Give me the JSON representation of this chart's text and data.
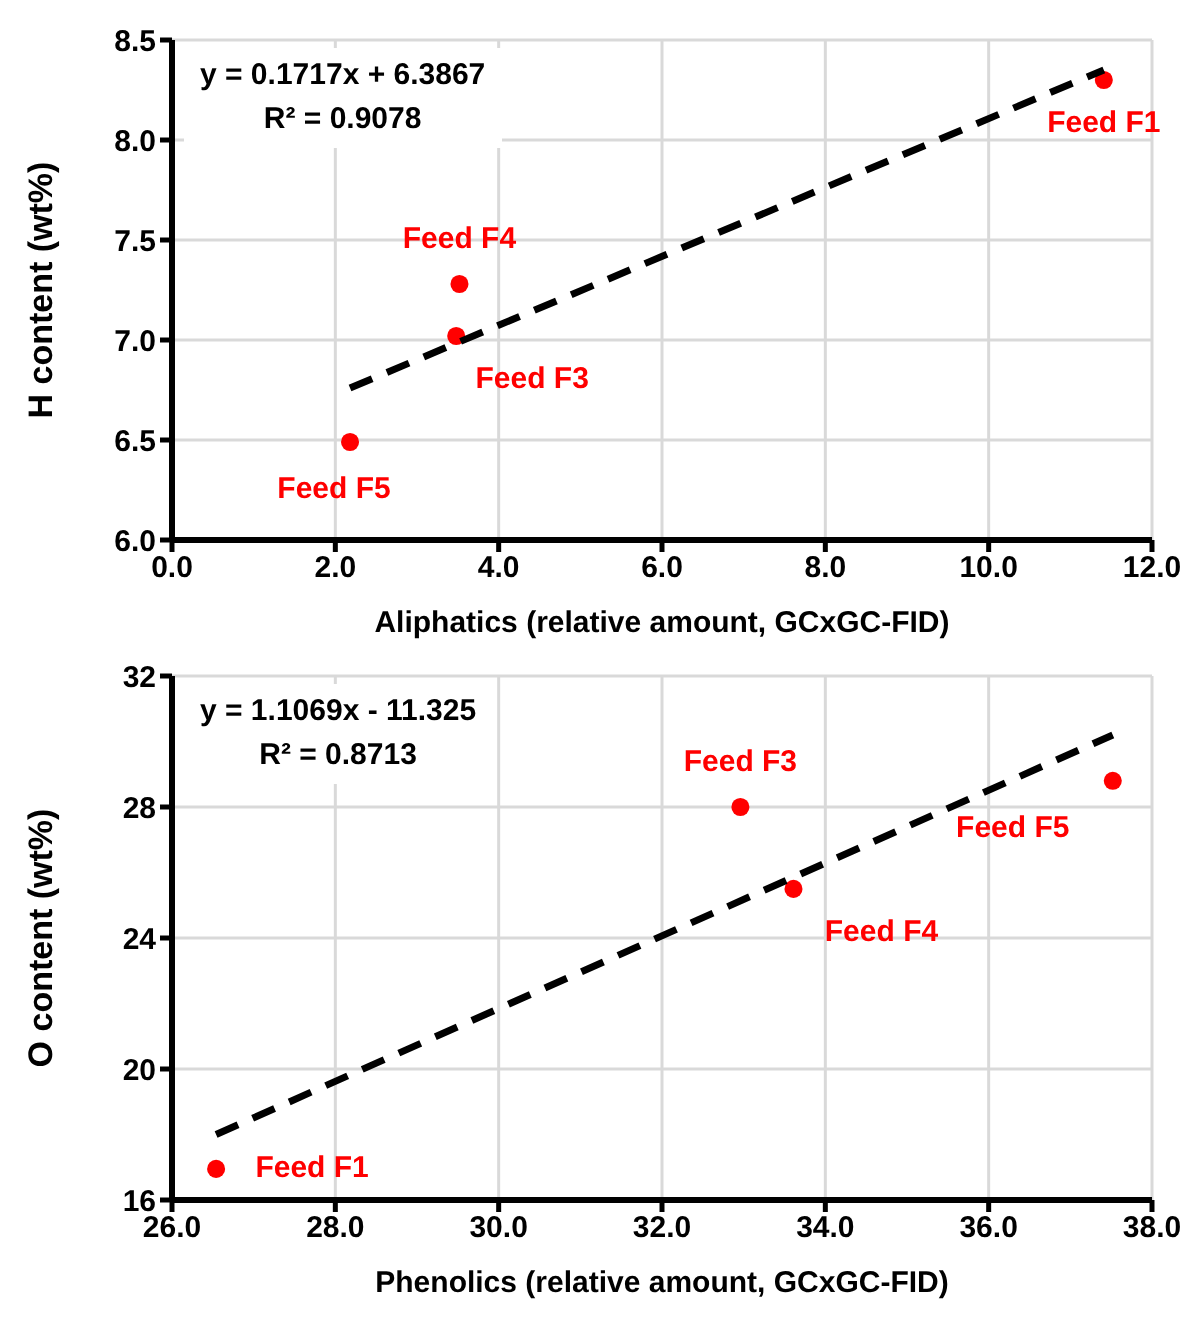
{
  "chart_data": [
    {
      "type": "scatter",
      "xlabel": "Aliphatics (relative amount, GCxGC-FID)",
      "ylabel": "H content (wt%)",
      "xlim": [
        0,
        12
      ],
      "xticks": [
        {
          "value": 0,
          "label": "0.0"
        },
        {
          "value": 2,
          "label": "2.0"
        },
        {
          "value": 4,
          "label": "4.0"
        },
        {
          "value": 6,
          "label": "6.0"
        },
        {
          "value": 8,
          "label": "8.0"
        },
        {
          "value": 10,
          "label": "10.0"
        },
        {
          "value": 12,
          "label": "12.0"
        }
      ],
      "ylim": [
        6,
        8.5
      ],
      "yticks": [
        {
          "value": 6,
          "label": "6.0"
        },
        {
          "value": 6.5,
          "label": "6.5"
        },
        {
          "value": 7,
          "label": "7.0"
        },
        {
          "value": 7.5,
          "label": "7.5"
        },
        {
          "value": 8,
          "label": "8.0"
        },
        {
          "value": 8.5,
          "label": "8.5"
        }
      ],
      "grid": true,
      "legend": false,
      "series": [
        {
          "color": "#ff0000",
          "marker": "circle",
          "x": [
            11.41,
            3.52,
            3.48,
            2.18
          ],
          "values": [
            8.3,
            7.28,
            7.02,
            6.49
          ]
        },
        {
          "type": "line",
          "color": "#000000",
          "line_style": "dashed",
          "marker": "none",
          "x": [
            2.18,
            11.41
          ],
          "values": [
            6.76,
            8.35
          ]
        }
      ],
      "annotations": [
        "y = 0.1717x + 6.3867",
        "R² = 0.9078",
        {
          "text": "Feed F1",
          "x": 11.41,
          "y": 8.3
        },
        {
          "text": "Feed F4",
          "x": 3.52,
          "y": 7.28
        },
        {
          "text": "Feed F3",
          "x": 3.48,
          "y": 7.02
        },
        {
          "text": "Feed F5",
          "x": 2.18,
          "y": 6.49
        }
      ]
    },
    {
      "type": "scatter",
      "xlabel": "Phenolics (relative amount, GCxGC-FID)",
      "ylabel": "O content (wt%)",
      "xlim": [
        26,
        38
      ],
      "xticks": [
        {
          "value": 26,
          "label": "26.0"
        },
        {
          "value": 28,
          "label": "28.0"
        },
        {
          "value": 30,
          "label": "30.0"
        },
        {
          "value": 32,
          "label": "32.0"
        },
        {
          "value": 34,
          "label": "34.0"
        },
        {
          "value": 36,
          "label": "36.0"
        },
        {
          "value": 38,
          "label": "38.0"
        }
      ],
      "ylim": [
        16,
        32
      ],
      "yticks": [
        16,
        20,
        24,
        28,
        32
      ],
      "grid": true,
      "legend": false,
      "series": [
        {
          "color": "#ff0000",
          "marker": "circle",
          "x": [
            26.54,
            32.96,
            33.61,
            37.52
          ],
          "values": [
            16.95,
            28.0,
            25.5,
            28.8
          ]
        },
        {
          "type": "line",
          "color": "#000000",
          "line_style": "dashed",
          "marker": "none",
          "x": [
            26.54,
            37.52
          ],
          "values": [
            18.0,
            30.2
          ]
        }
      ],
      "annotations": [
        "y = 1.1069x - 11.325",
        "R² = 0.8713",
        {
          "text": "Feed F1",
          "x": 26.54,
          "y": 16.95
        },
        {
          "text": "Feed F3",
          "x": 32.96,
          "y": 28.0
        },
        {
          "text": "Feed F4",
          "x": 33.61,
          "y": 25.5
        },
        {
          "text": "Feed F5",
          "x": 37.52,
          "y": 28.8
        }
      ]
    }
  ]
}
